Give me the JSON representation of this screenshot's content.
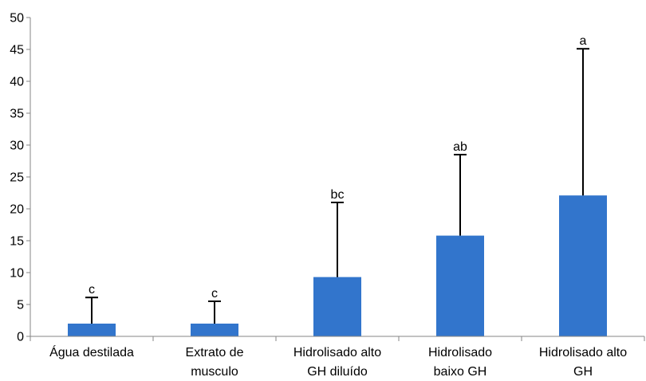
{
  "chart_data": {
    "type": "bar",
    "categories": [
      [
        "Água destilada"
      ],
      [
        "Extrato de",
        "musculo"
      ],
      [
        "Hidrolisado alto",
        "GH diluído"
      ],
      [
        "Hidrolisado",
        "baixo GH"
      ],
      [
        "Hidrolisado alto",
        "GH"
      ]
    ],
    "values": [
      2.0,
      2.0,
      9.3,
      15.8,
      22.1
    ],
    "error_upper": [
      6.1,
      5.5,
      21.0,
      28.5,
      45.1
    ],
    "significance_labels": [
      "c",
      "c",
      "bc",
      "ab",
      "a"
    ],
    "ylim": [
      0,
      50
    ],
    "yticks": [
      0,
      5,
      10,
      15,
      20,
      25,
      30,
      35,
      40,
      45,
      50
    ],
    "grid": false,
    "colors": {
      "bar": "#3275CC",
      "axis": "#868686",
      "error_bar": "#000000",
      "text": "#000000"
    }
  }
}
